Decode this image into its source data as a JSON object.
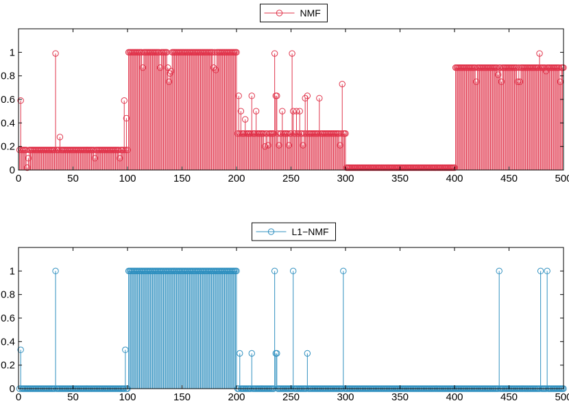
{
  "chart_data": [
    {
      "type": "stem",
      "series": [
        {
          "name": "NMF",
          "color": "#e0334a"
        }
      ],
      "legend_placement": "top-center",
      "xlim": [
        0,
        500
      ],
      "ylim": [
        0,
        1.2
      ],
      "xticks": [
        0,
        50,
        100,
        150,
        200,
        250,
        300,
        350,
        400,
        450,
        500
      ],
      "yticks": [
        0,
        0.2,
        0.4,
        0.6,
        0.8,
        1
      ],
      "grid": false,
      "segments": [
        {
          "from": 1,
          "to": 100,
          "value": 0.17
        },
        {
          "from": 101,
          "to": 200,
          "value": 1.0
        },
        {
          "from": 201,
          "to": 300,
          "value": 0.31
        },
        {
          "from": 301,
          "to": 400,
          "value": 0.02
        },
        {
          "from": 401,
          "to": 500,
          "value": 0.87
        }
      ],
      "overrides": [
        {
          "x": 2,
          "y": 0.59
        },
        {
          "x": 8,
          "y": 0.02
        },
        {
          "x": 9,
          "y": 0.1
        },
        {
          "x": 34,
          "y": 0.99
        },
        {
          "x": 38,
          "y": 0.28
        },
        {
          "x": 70,
          "y": 0.1
        },
        {
          "x": 93,
          "y": 0.1
        },
        {
          "x": 97,
          "y": 0.59
        },
        {
          "x": 99,
          "y": 0.44
        },
        {
          "x": 114,
          "y": 0.87
        },
        {
          "x": 130,
          "y": 0.87
        },
        {
          "x": 137,
          "y": 0.87
        },
        {
          "x": 138,
          "y": 0.75
        },
        {
          "x": 139,
          "y": 0.82
        },
        {
          "x": 140,
          "y": 0.84
        },
        {
          "x": 179,
          "y": 0.87
        },
        {
          "x": 181,
          "y": 0.85
        },
        {
          "x": 202,
          "y": 0.63
        },
        {
          "x": 204,
          "y": 0.5
        },
        {
          "x": 208,
          "y": 0.43
        },
        {
          "x": 214,
          "y": 0.63
        },
        {
          "x": 218,
          "y": 0.5
        },
        {
          "x": 226,
          "y": 0.2
        },
        {
          "x": 229,
          "y": 0.21
        },
        {
          "x": 235,
          "y": 0.99
        },
        {
          "x": 236,
          "y": 0.63
        },
        {
          "x": 237,
          "y": 0.63
        },
        {
          "x": 239,
          "y": 0.21
        },
        {
          "x": 242,
          "y": 0.5
        },
        {
          "x": 248,
          "y": 0.21
        },
        {
          "x": 251,
          "y": 0.99
        },
        {
          "x": 252,
          "y": 0.5
        },
        {
          "x": 255,
          "y": 0.5
        },
        {
          "x": 258,
          "y": 0.5
        },
        {
          "x": 261,
          "y": 0.21
        },
        {
          "x": 263,
          "y": 0.61
        },
        {
          "x": 265,
          "y": 0.63
        },
        {
          "x": 276,
          "y": 0.61
        },
        {
          "x": 295,
          "y": 0.21
        },
        {
          "x": 297,
          "y": 0.73
        },
        {
          "x": 420,
          "y": 0.75
        },
        {
          "x": 440,
          "y": 0.81
        },
        {
          "x": 443,
          "y": 0.75
        },
        {
          "x": 458,
          "y": 0.75
        },
        {
          "x": 460,
          "y": 0.75
        },
        {
          "x": 478,
          "y": 0.99
        },
        {
          "x": 484,
          "y": 0.84
        },
        {
          "x": 497,
          "y": 0.75
        }
      ]
    },
    {
      "type": "stem",
      "series": [
        {
          "name": "L1−NMF",
          "color": "#2e8fbf"
        }
      ],
      "legend_placement": "top-center",
      "xlim": [
        0,
        500
      ],
      "ylim": [
        0,
        1.2
      ],
      "xticks": [
        0,
        50,
        100,
        150,
        200,
        250,
        300,
        350,
        400,
        450,
        500
      ],
      "yticks": [
        0,
        0.2,
        0.4,
        0.6,
        0.8,
        1
      ],
      "grid": false,
      "segments": [
        {
          "from": 1,
          "to": 100,
          "value": 0.0
        },
        {
          "from": 101,
          "to": 200,
          "value": 1.0
        },
        {
          "from": 201,
          "to": 500,
          "value": 0.0
        }
      ],
      "overrides": [
        {
          "x": 2,
          "y": 0.33
        },
        {
          "x": 34,
          "y": 1.0
        },
        {
          "x": 98,
          "y": 0.33
        },
        {
          "x": 203,
          "y": 0.3
        },
        {
          "x": 214,
          "y": 0.3
        },
        {
          "x": 235,
          "y": 1.0
        },
        {
          "x": 236,
          "y": 0.3
        },
        {
          "x": 237,
          "y": 0.3
        },
        {
          "x": 252,
          "y": 1.0
        },
        {
          "x": 265,
          "y": 0.3
        },
        {
          "x": 298,
          "y": 1.0
        },
        {
          "x": 441,
          "y": 1.0
        },
        {
          "x": 479,
          "y": 1.0
        },
        {
          "x": 485,
          "y": 1.0
        }
      ]
    }
  ]
}
